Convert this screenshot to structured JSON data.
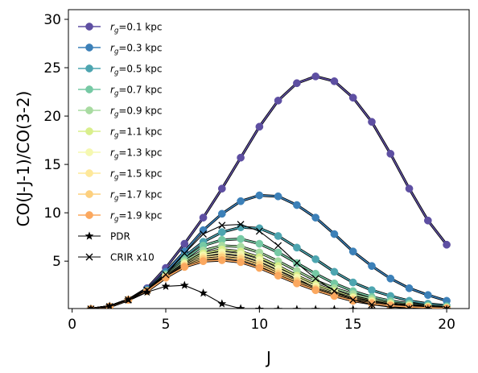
{
  "chart_data": {
    "type": "line",
    "title": "",
    "xlabel": "J",
    "ylabel": "CO(J-J-1)/CO(3-2)",
    "xlim": [
      -0.2,
      21.2
    ],
    "ylim": [
      0.1,
      31.0
    ],
    "xticks": [
      0,
      5,
      10,
      15,
      20
    ],
    "yticks": [
      5,
      10,
      15,
      20,
      25,
      30
    ],
    "grid": false,
    "legend_position": "top-left",
    "x": [
      1,
      2,
      3,
      4,
      5,
      6,
      7,
      8,
      9,
      10,
      11,
      12,
      13,
      14,
      15,
      16,
      17,
      18,
      19,
      20
    ],
    "series": [
      {
        "name": "=0.1 kpc",
        "name_prefix": "r",
        "name_subscript": "g",
        "color": "#5e4fa2",
        "marker": "circle",
        "values": [
          0.05,
          0.3,
          1.0,
          2.2,
          4.3,
          6.8,
          9.5,
          12.5,
          15.7,
          18.9,
          21.6,
          23.4,
          24.1,
          23.6,
          21.9,
          19.4,
          16.1,
          12.5,
          9.2,
          6.7
        ]
      },
      {
        "name": "=0.3 kpc",
        "name_prefix": "r",
        "name_subscript": "g",
        "color": "#3c80b8",
        "marker": "circle",
        "values": [
          0.05,
          0.3,
          1.0,
          2.1,
          3.9,
          6.0,
          8.2,
          9.9,
          11.2,
          11.8,
          11.7,
          10.8,
          9.5,
          7.8,
          6.0,
          4.5,
          3.2,
          2.2,
          1.5,
          0.9
        ]
      },
      {
        "name": "=0.5 kpc",
        "name_prefix": "r",
        "name_subscript": "g",
        "color": "#4da5b0",
        "marker": "circle",
        "values": [
          0.05,
          0.3,
          1.0,
          2.0,
          3.7,
          5.5,
          7.0,
          8.0,
          8.5,
          8.4,
          7.6,
          6.4,
          5.2,
          3.9,
          2.8,
          2.0,
          1.4,
          0.9,
          0.6,
          0.4
        ]
      },
      {
        "name": "=0.7 kpc",
        "name_prefix": "r",
        "name_subscript": "g",
        "color": "#76c9a4",
        "marker": "circle",
        "values": [
          0.05,
          0.3,
          1.0,
          1.9,
          3.6,
          5.2,
          6.6,
          7.2,
          7.3,
          6.8,
          5.9,
          4.8,
          3.7,
          2.7,
          1.9,
          1.3,
          0.9,
          0.6,
          0.4,
          0.3
        ]
      },
      {
        "name": "=0.9 kpc",
        "name_prefix": "r",
        "name_subscript": "g",
        "color": "#a8dba1",
        "marker": "circle",
        "values": [
          0.05,
          0.3,
          1.0,
          1.9,
          3.5,
          5.0,
          6.1,
          6.6,
          6.5,
          5.9,
          5.0,
          4.0,
          3.0,
          2.2,
          1.6,
          1.1,
          0.7,
          0.5,
          0.3,
          0.2
        ]
      },
      {
        "name": "=1.1 kpc",
        "name_prefix": "r",
        "name_subscript": "g",
        "color": "#d9ef8c",
        "marker": "circle",
        "values": [
          0.05,
          0.3,
          1.0,
          1.9,
          3.4,
          4.8,
          5.8,
          6.2,
          6.0,
          5.4,
          4.5,
          3.5,
          2.6,
          1.9,
          1.3,
          0.9,
          0.6,
          0.4,
          0.3,
          0.2
        ]
      },
      {
        "name": "=1.3 kpc",
        "name_prefix": "r",
        "name_subscript": "g",
        "color": "#f5f8b0",
        "marker": "circle",
        "values": [
          0.05,
          0.3,
          1.0,
          1.9,
          3.4,
          4.7,
          5.6,
          5.9,
          5.7,
          5.1,
          4.2,
          3.3,
          2.4,
          1.7,
          1.2,
          0.8,
          0.5,
          0.35,
          0.25,
          0.18
        ]
      },
      {
        "name": "=1.5 kpc",
        "name_prefix": "r",
        "name_subscript": "g",
        "color": "#fee89a",
        "marker": "circle",
        "values": [
          0.05,
          0.3,
          1.0,
          1.9,
          3.3,
          4.6,
          5.4,
          5.6,
          5.4,
          4.8,
          3.9,
          3.0,
          2.2,
          1.6,
          1.1,
          0.75,
          0.5,
          0.33,
          0.22,
          0.15
        ]
      },
      {
        "name": "=1.7 kpc",
        "name_prefix": "r",
        "name_subscript": "g",
        "color": "#fdd07e",
        "marker": "circle",
        "values": [
          0.05,
          0.3,
          1.0,
          1.9,
          3.3,
          4.5,
          5.2,
          5.4,
          5.2,
          4.6,
          3.7,
          2.9,
          2.1,
          1.5,
          1.0,
          0.7,
          0.45,
          0.3,
          0.2,
          0.14
        ]
      },
      {
        "name": "=1.9 kpc",
        "name_prefix": "r",
        "name_subscript": "g",
        "color": "#fba85f",
        "marker": "circle",
        "values": [
          0.05,
          0.3,
          1.0,
          1.9,
          3.3,
          4.4,
          5.0,
          5.1,
          4.9,
          4.3,
          3.5,
          2.7,
          2.0,
          1.4,
          0.9,
          0.6,
          0.4,
          0.27,
          0.18,
          0.12
        ]
      },
      {
        "name": "PDR",
        "color": "#000000",
        "marker": "star",
        "values": [
          0.05,
          0.35,
          1.0,
          1.8,
          2.4,
          2.5,
          1.7,
          0.6,
          0.1,
          0.03,
          0.01,
          0.01,
          0.01,
          0.01,
          0.01,
          0.01,
          0.01,
          0.01,
          0.01,
          0.01
        ]
      },
      {
        "name": "CRIR x10",
        "color": "#000000",
        "marker": "x",
        "values": [
          0.05,
          0.3,
          1.0,
          2.0,
          3.6,
          5.8,
          7.8,
          8.7,
          8.8,
          8.1,
          6.6,
          4.8,
          3.2,
          1.9,
          1.0,
          0.5,
          0.25,
          0.12,
          0.06,
          0.03
        ]
      }
    ]
  }
}
